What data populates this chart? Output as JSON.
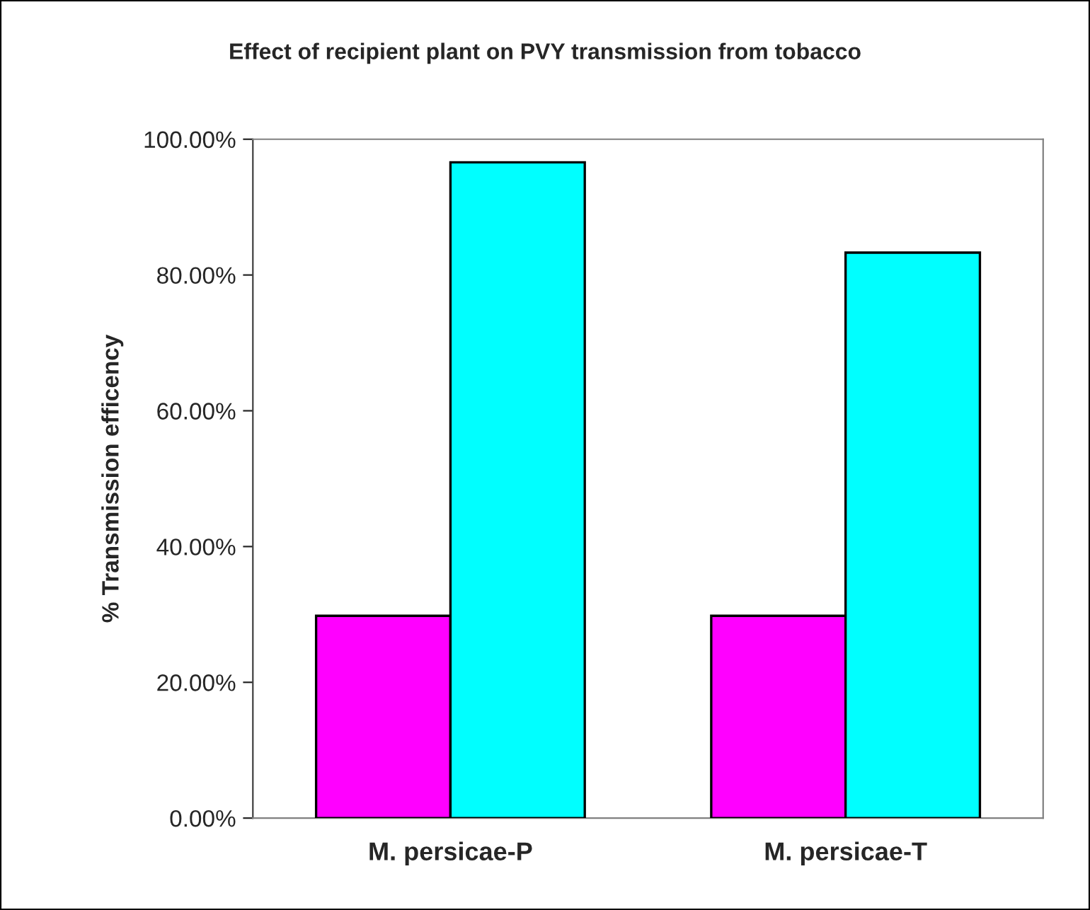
{
  "chart_data": {
    "type": "bar",
    "title": "Effect of recipient plant on PVY transmission from tobacco",
    "ylabel": "% Transmission efficency",
    "categories": [
      "M. persicae-P",
      "M. persicae-T"
    ],
    "series": [
      {
        "color": "#ff00ff",
        "values": [
          29.8,
          29.8
        ]
      },
      {
        "color": "#00ffff",
        "values": [
          96.6,
          83.3
        ]
      }
    ],
    "ylim": [
      0,
      100
    ],
    "yticks": [
      {
        "value": 0,
        "label": "0.00%"
      },
      {
        "value": 20,
        "label": "20.00%"
      },
      {
        "value": 40,
        "label": "40.00%"
      },
      {
        "value": 60,
        "label": "60.00%"
      },
      {
        "value": 80,
        "label": "80.00%"
      },
      {
        "value": 100,
        "label": "100.00%"
      }
    ],
    "grid": false,
    "legend": false
  }
}
